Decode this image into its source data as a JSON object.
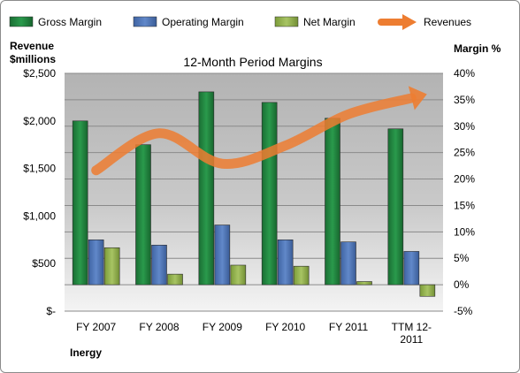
{
  "chart_data": {
    "type": "bar",
    "title": "12-Month Period Margins",
    "categories": [
      "FY 2007",
      "FY 2008",
      "FY 2009",
      "FY 2010",
      "FY 2011",
      "TTM 12-2011"
    ],
    "category_lines": [
      [
        "FY 2007"
      ],
      [
        "FY 2008"
      ],
      [
        "FY 2009"
      ],
      [
        "FY 2010"
      ],
      [
        "FY 2011"
      ],
      [
        "TTM 12-",
        "2011"
      ]
    ],
    "series": [
      {
        "name": "Gross Margin",
        "axis": "right",
        "unit": "%",
        "values": [
          31,
          26.5,
          36.5,
          34.5,
          31.5,
          29.5
        ],
        "color": "#1e7b3a"
      },
      {
        "name": "Operating Margin",
        "axis": "right",
        "unit": "%",
        "values": [
          8.5,
          7.5,
          11.3,
          8.5,
          8.1,
          6.3
        ],
        "color": "#4a6fae"
      },
      {
        "name": "Net Margin",
        "axis": "right",
        "unit": "%",
        "values": [
          7,
          2,
          3.7,
          3.5,
          0.6,
          -2.2
        ],
        "color": "#8aab45"
      },
      {
        "name": "Revenues",
        "axis": "left",
        "type": "line",
        "unit": "$millions",
        "values": [
          1480,
          1870,
          1550,
          1740,
          2070,
          2240
        ],
        "color": "#ed7d31"
      }
    ],
    "y_left": {
      "label_lines": [
        "Revenue",
        "$millions"
      ],
      "min": 0,
      "max": 2500,
      "step": 500,
      "tick_labels": [
        "$-",
        "$500",
        "$1,000",
        "$1,500",
        "$2,000",
        "$2,500"
      ]
    },
    "y_right": {
      "label": "Margin %",
      "min": -5,
      "max": 40,
      "step": 5,
      "tick_labels": [
        "-5%",
        "0%",
        "5%",
        "10%",
        "15%",
        "20%",
        "25%",
        "30%",
        "35%",
        "40%"
      ]
    },
    "legend_position": "top",
    "grid": true
  },
  "footer": {
    "company": "Inergy"
  }
}
